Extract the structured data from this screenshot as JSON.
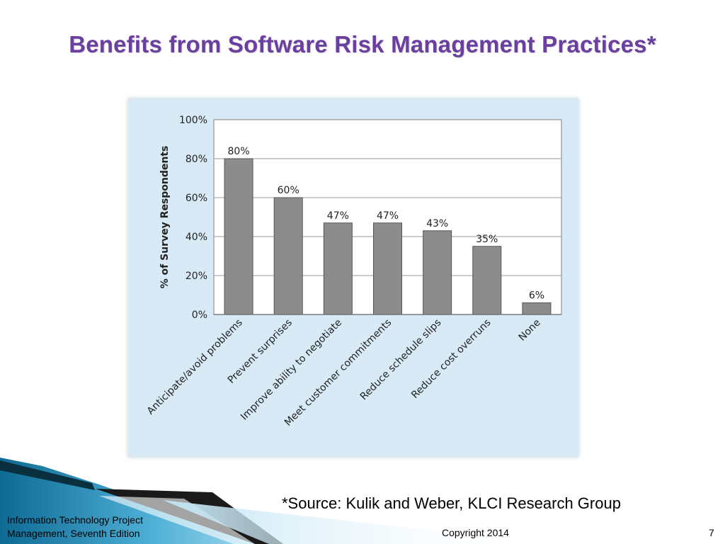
{
  "slide": {
    "title": "Benefits from Software Risk Management Practices*",
    "source_note": "*Source: Kulik and Weber, KLCI Research Group",
    "footer_line1": "Information Technology Project",
    "footer_line2": "Management, Seventh Edition",
    "copyright": "Copyright 2014",
    "page_number": "7",
    "colors": {
      "title": "#6b3fa0",
      "panel_bg": "#d7eaf6",
      "bar_fill": "#8c8c8c",
      "deco_teal": "#1c7ea6"
    }
  },
  "chart_data": {
    "type": "bar",
    "title": "",
    "xlabel": "",
    "ylabel": "% of Survey Respondents",
    "ylim": [
      0,
      100
    ],
    "y_ticks": [
      "0%",
      "20%",
      "40%",
      "60%",
      "80%",
      "100%"
    ],
    "y_tick_values": [
      0,
      20,
      40,
      60,
      80,
      100
    ],
    "grid": true,
    "categories": [
      "Anticipate/avoid problems",
      "Prevent surprises",
      "Improve ability to negotiate",
      "Meet customer commitments",
      "Reduce schedule slips",
      "Reduce cost overruns",
      "None"
    ],
    "values": [
      80,
      60,
      47,
      47,
      43,
      35,
      6
    ],
    "value_labels": [
      "80%",
      "60%",
      "47%",
      "47%",
      "43%",
      "35%",
      "6%"
    ]
  }
}
